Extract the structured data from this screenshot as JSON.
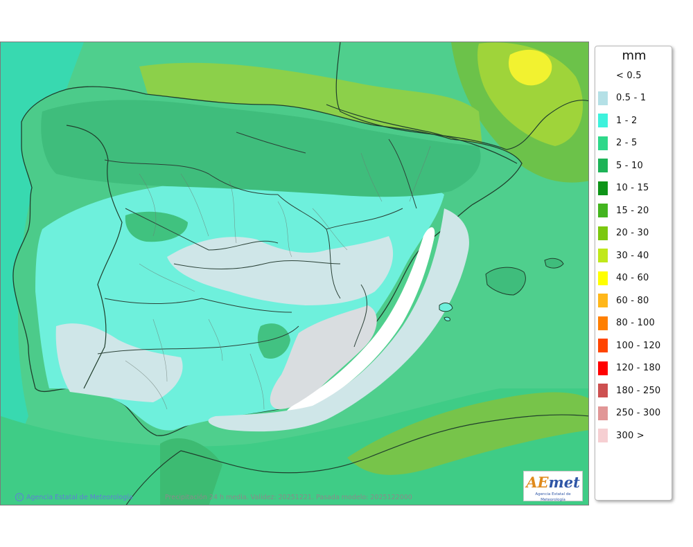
{
  "map": {
    "copyright_text": "Agencia Estatal de Meteorología",
    "copyright_symbol": "C",
    "validity_text": "Precipitación 24 h media. Validez: 20251221. Pasada modelo: 2025122000",
    "logo": {
      "prefix": "AE",
      "suffix": "met",
      "subtitle": "Agencia Estatal de Meteorología"
    }
  },
  "legend": {
    "title": "mm",
    "items": [
      {
        "label": "< 0.5",
        "color": "#ffffff"
      },
      {
        "label": "0.5 - 1",
        "color": "#b4e0e6"
      },
      {
        "label": "1 - 2",
        "color": "#3df2dc"
      },
      {
        "label": "2 - 5",
        "color": "#2ed88a"
      },
      {
        "label": "5 - 10",
        "color": "#1db357"
      },
      {
        "label": "10 - 15",
        "color": "#0e9418"
      },
      {
        "label": "15 - 20",
        "color": "#43b51f"
      },
      {
        "label": "20 - 30",
        "color": "#7cc80f"
      },
      {
        "label": "30 - 40",
        "color": "#c0e81a"
      },
      {
        "label": "40 - 60",
        "color": "#ffff00"
      },
      {
        "label": "60 - 80",
        "color": "#ffb71a"
      },
      {
        "label": "80 - 100",
        "color": "#ff7f00"
      },
      {
        "label": "100 - 120",
        "color": "#ff4500"
      },
      {
        "label": "120 - 180",
        "color": "#ff0000"
      },
      {
        "label": "180 - 250",
        "color": "#cd5050"
      },
      {
        "label": "250 - 300",
        "color": "#e19696"
      },
      {
        "label": "300 >",
        "color": "#f6cfd2"
      }
    ]
  }
}
